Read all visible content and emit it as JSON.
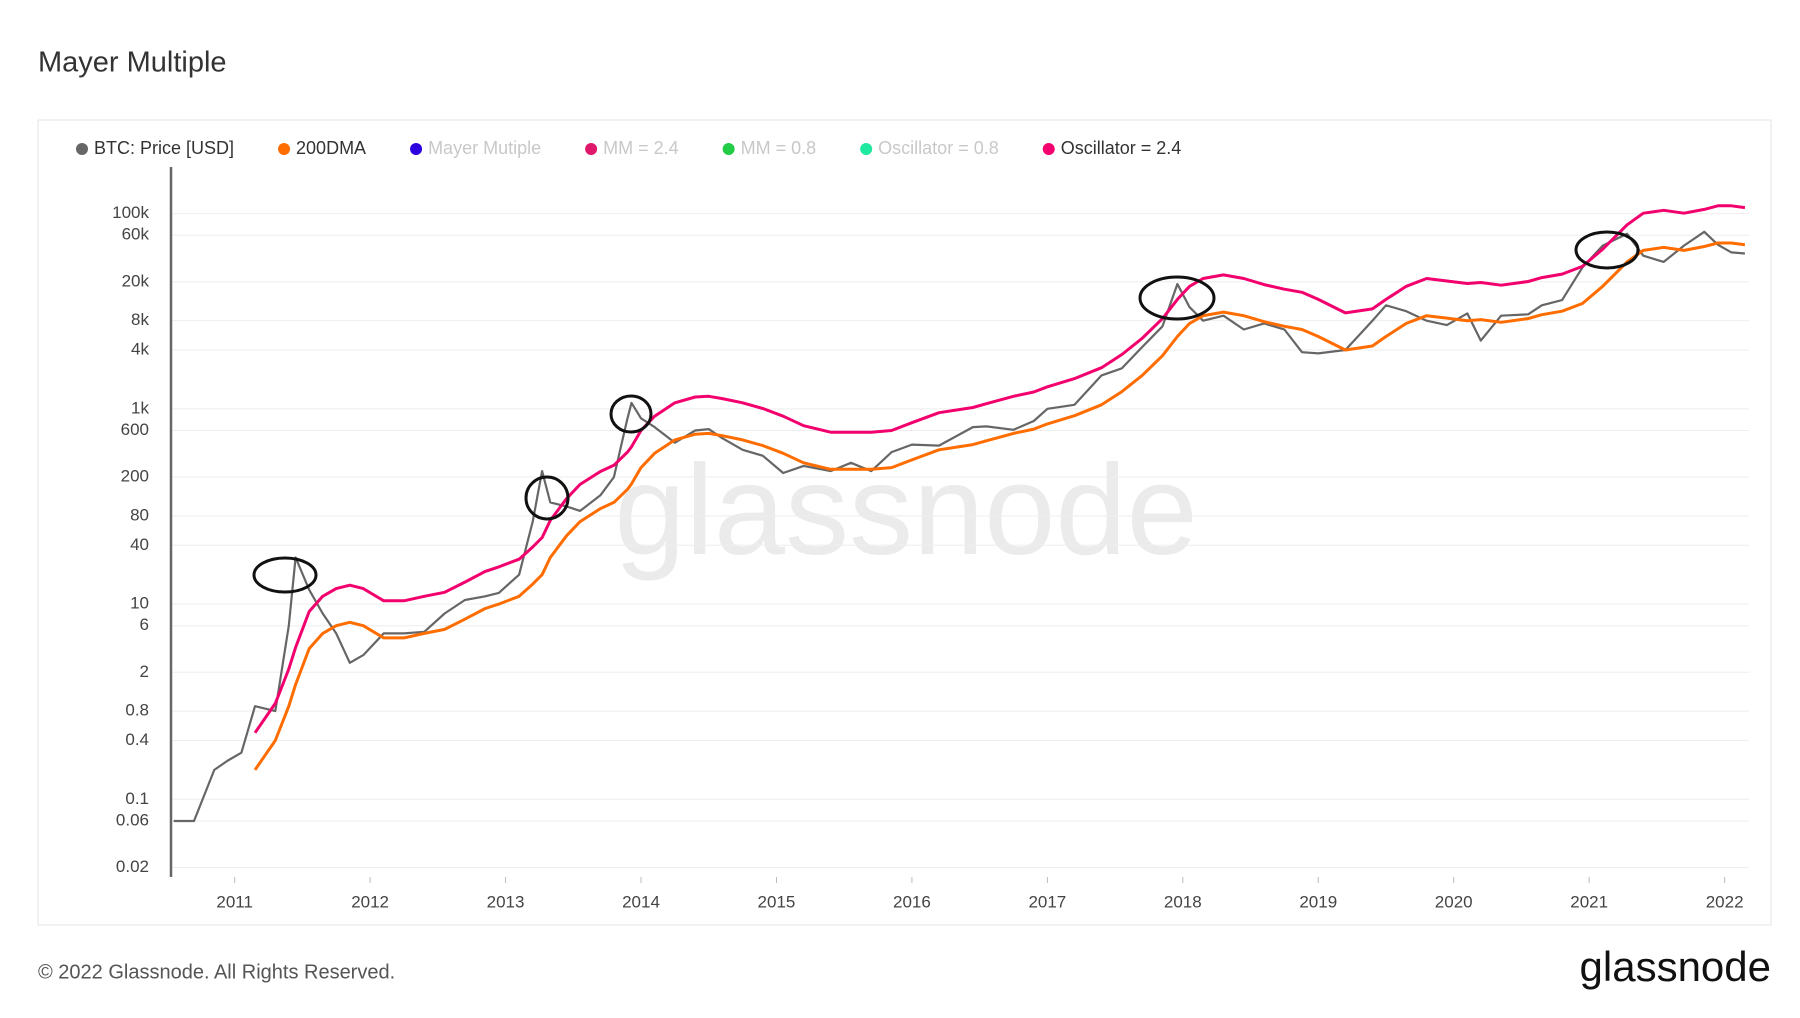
{
  "chart_data": {
    "type": "line",
    "title": "Mayer Multiple",
    "log_y": true,
    "grid": true,
    "legend_position": "top-left",
    "watermark": "glassnode",
    "copyright": "© 2022 Glassnode. All Rights Reserved.",
    "brand": "glassnode",
    "xlim": [
      2010.53,
      2022.18
    ],
    "xticks": [
      2011,
      2012,
      2013,
      2014,
      2015,
      2016,
      2017,
      2018,
      2019,
      2020,
      2021,
      2022
    ],
    "ylim": [
      0.016,
      300000
    ],
    "yticks": [
      0.02,
      0.06,
      0.1,
      0.4,
      0.8,
      2,
      6,
      10,
      40,
      80,
      200,
      600,
      {
        "value": 1000,
        "label": "1k"
      },
      {
        "value": 4000,
        "label": "4k"
      },
      {
        "value": 8000,
        "label": "8k"
      },
      {
        "value": 20000,
        "label": "20k"
      },
      {
        "value": 60000,
        "label": "60k"
      },
      {
        "value": 100000,
        "label": "100k"
      }
    ],
    "x": [
      2010.55,
      2010.7,
      2010.85,
      2010.95,
      2011.05,
      2011.15,
      2011.3,
      2011.4,
      2011.45,
      2011.55,
      2011.65,
      2011.75,
      2011.85,
      2011.95,
      2012.1,
      2012.25,
      2012.4,
      2012.55,
      2012.7,
      2012.85,
      2012.95,
      2013.1,
      2013.2,
      2013.27,
      2013.33,
      2013.45,
      2013.55,
      2013.7,
      2013.8,
      2013.9,
      2013.93,
      2014.0,
      2014.1,
      2014.25,
      2014.4,
      2014.5,
      2014.6,
      2014.75,
      2014.9,
      2015.05,
      2015.2,
      2015.4,
      2015.55,
      2015.7,
      2015.85,
      2016.0,
      2016.2,
      2016.45,
      2016.55,
      2016.75,
      2016.9,
      2017.0,
      2017.2,
      2017.4,
      2017.55,
      2017.7,
      2017.85,
      2017.96,
      2018.05,
      2018.15,
      2018.3,
      2018.45,
      2018.6,
      2018.75,
      2018.88,
      2019.0,
      2019.2,
      2019.4,
      2019.5,
      2019.65,
      2019.8,
      2019.95,
      2020.1,
      2020.2,
      2020.35,
      2020.55,
      2020.65,
      2020.8,
      2020.95,
      2021.1,
      2021.28,
      2021.4,
      2021.55,
      2021.7,
      2021.85,
      2021.95,
      2022.05,
      2022.15
    ],
    "series": [
      {
        "name": "BTC: Price [USD]",
        "color": "#666666",
        "values": [
          0.06,
          0.06,
          0.2,
          0.25,
          0.3,
          0.9,
          0.8,
          6,
          30,
          14,
          8,
          5,
          2.5,
          3,
          5,
          5,
          5.2,
          8,
          11,
          12,
          13,
          20,
          70,
          230,
          110,
          100,
          90,
          130,
          200,
          800,
          1150,
          800,
          650,
          450,
          600,
          620,
          500,
          380,
          330,
          220,
          260,
          230,
          280,
          230,
          360,
          430,
          420,
          650,
          660,
          610,
          750,
          1000,
          1100,
          2200,
          2600,
          4300,
          7000,
          19000,
          11000,
          8000,
          9000,
          6500,
          7500,
          6500,
          3800,
          3700,
          4000,
          8000,
          11500,
          10000,
          8000,
          7200,
          9500,
          5000,
          9000,
          9300,
          11500,
          13000,
          28000,
          47000,
          62000,
          37000,
          32000,
          47000,
          65000,
          48000,
          40000,
          39000
        ]
      },
      {
        "name": "200DMA",
        "color": "#ff6d00",
        "values": [
          null,
          null,
          null,
          null,
          null,
          0.2,
          0.4,
          0.9,
          1.5,
          3.5,
          5,
          6,
          6.5,
          6,
          4.5,
          4.5,
          5,
          5.5,
          7,
          9,
          10,
          12,
          16,
          20,
          30,
          50,
          70,
          95,
          110,
          150,
          170,
          250,
          350,
          480,
          550,
          560,
          530,
          480,
          420,
          350,
          280,
          240,
          240,
          240,
          250,
          300,
          380,
          430,
          470,
          560,
          620,
          700,
          850,
          1100,
          1500,
          2200,
          3500,
          5500,
          7500,
          9000,
          9800,
          9000,
          7800,
          7000,
          6500,
          5500,
          4000,
          4400,
          5500,
          7500,
          9000,
          8500,
          8000,
          8200,
          7700,
          8400,
          9200,
          10000,
          12000,
          18000,
          32000,
          42000,
          45000,
          42000,
          46000,
          50000,
          50000,
          48000
        ]
      },
      {
        "name": "Mayer Mutiple",
        "color": "#2d00e0",
        "hidden": true
      },
      {
        "name": "MM = 2.4",
        "color": "#e0186b",
        "hidden": true
      },
      {
        "name": "MM = 0.8",
        "color": "#22cc44",
        "hidden": true
      },
      {
        "name": "Oscillator = 0.8",
        "color": "#1de9a0",
        "hidden": true
      },
      {
        "name": "Oscillator = 2.4",
        "color": "#f2006e",
        "values": [
          null,
          null,
          null,
          null,
          null,
          0.48,
          0.96,
          2.16,
          3.6,
          8.4,
          12,
          14.4,
          15.6,
          14.4,
          10.8,
          10.8,
          12,
          13.2,
          16.8,
          21.6,
          24,
          28.8,
          38.4,
          48,
          72,
          120,
          168,
          228,
          264,
          360,
          408,
          600,
          840,
          1152,
          1320,
          1344,
          1272,
          1152,
          1008,
          840,
          672,
          576,
          576,
          576,
          600,
          720,
          912,
          1032,
          1128,
          1344,
          1488,
          1680,
          2040,
          2640,
          3600,
          5280,
          8400,
          13200,
          18000,
          21600,
          23520,
          21600,
          18720,
          16800,
          15600,
          13200,
          9600,
          10560,
          13200,
          18000,
          21600,
          20400,
          19200,
          19680,
          18480,
          20160,
          22080,
          24000,
          28800,
          43200,
          76800,
          100800,
          108000,
          100800,
          110400,
          120000,
          120000,
          115200
        ]
      }
    ]
  }
}
